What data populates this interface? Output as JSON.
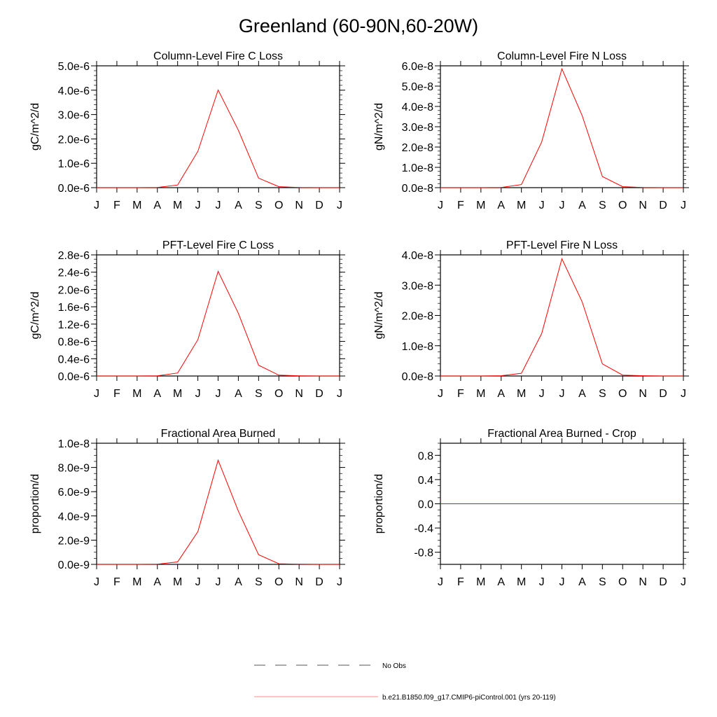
{
  "title": "Greenland (60-90N,60-20W)",
  "legend": {
    "entries": [
      {
        "label": "No Obs",
        "color": "#555555",
        "style": "dashed"
      },
      {
        "label": "b.e21.B1850.f09_g17.CMIP6-piControl.001 (yrs 20-119)",
        "color": "#ff0000",
        "style": "solid"
      }
    ]
  },
  "chart_data": [
    {
      "type": "line",
      "title": "Column-Level Fire C Loss",
      "ylabel": "gC/m^2/d",
      "categories": [
        "J",
        "F",
        "M",
        "A",
        "M",
        "J",
        "J",
        "A",
        "S",
        "O",
        "N",
        "D",
        "J"
      ],
      "ylim": [
        0,
        5e-06
      ],
      "yticks": [
        0,
        1e-06,
        2e-06,
        3e-06,
        4e-06,
        5e-06
      ],
      "yticklabels": [
        "0.0e-6",
        "1.0e-6",
        "2.0e-6",
        "3.0e-6",
        "4.0e-6",
        "5.0e-6"
      ],
      "minor_per_major": 5,
      "series": [
        {
          "color": "#ff0000",
          "values": [
            0,
            0,
            0,
            5e-09,
            1.1e-07,
            1.49e-06,
            4.01e-06,
            2.36e-06,
            3.9e-07,
            4e-08,
            1e-08,
            0,
            0
          ]
        }
      ]
    },
    {
      "type": "line",
      "title": "Column-Level Fire N Loss",
      "ylabel": "gN/m^2/d",
      "categories": [
        "J",
        "F",
        "M",
        "A",
        "M",
        "J",
        "J",
        "A",
        "S",
        "O",
        "N",
        "D",
        "J"
      ],
      "ylim": [
        0,
        6e-08
      ],
      "yticks": [
        0,
        1e-08,
        2e-08,
        3e-08,
        4e-08,
        5e-08,
        6e-08
      ],
      "yticklabels": [
        "0.0e-8",
        "1.0e-8",
        "2.0e-8",
        "3.0e-8",
        "4.0e-8",
        "5.0e-8",
        "6.0e-8"
      ],
      "minor_per_major": 5,
      "series": [
        {
          "color": "#ff0000",
          "values": [
            0,
            0,
            0,
            1e-10,
            1.5e-09,
            2.25e-08,
            5.85e-08,
            3.55e-08,
            5.5e-09,
            5e-10,
            1e-10,
            0,
            0
          ]
        }
      ]
    },
    {
      "type": "line",
      "title": "PFT-Level Fire C Loss",
      "ylabel": "gC/m^2/d",
      "categories": [
        "J",
        "F",
        "M",
        "A",
        "M",
        "J",
        "J",
        "A",
        "S",
        "O",
        "N",
        "D",
        "J"
      ],
      "ylim": [
        0,
        2.8e-06
      ],
      "yticks": [
        0,
        4e-07,
        8e-07,
        1.2e-06,
        1.6e-06,
        2e-06,
        2.4e-06,
        2.8e-06
      ],
      "yticklabels": [
        "0.0e-6",
        "0.4e-6",
        "0.8e-6",
        "1.2e-6",
        "1.6e-6",
        "2.0e-6",
        "2.4e-6",
        "2.8e-6"
      ],
      "minor_per_major": 4,
      "series": [
        {
          "color": "#ff0000",
          "values": [
            0,
            0,
            0,
            5e-09,
            7e-08,
            8.4e-07,
            2.42e-06,
            1.45e-06,
            2.5e-07,
            2e-08,
            5e-09,
            0,
            0
          ]
        }
      ]
    },
    {
      "type": "line",
      "title": "PFT-Level Fire N Loss",
      "ylabel": "gN/m^2/d",
      "categories": [
        "J",
        "F",
        "M",
        "A",
        "M",
        "J",
        "J",
        "A",
        "S",
        "O",
        "N",
        "D",
        "J"
      ],
      "ylim": [
        0,
        4e-08
      ],
      "yticks": [
        0,
        1e-08,
        2e-08,
        3e-08,
        4e-08
      ],
      "yticklabels": [
        "0.0e-8",
        "1.0e-8",
        "2.0e-8",
        "3.0e-8",
        "4.0e-8"
      ],
      "minor_per_major": 5,
      "series": [
        {
          "color": "#ff0000",
          "values": [
            0,
            0,
            0,
            1e-10,
            9e-10,
            1.4e-08,
            3.87e-08,
            2.45e-08,
            4e-09,
            3e-10,
            1e-10,
            0,
            0
          ]
        }
      ]
    },
    {
      "type": "line",
      "title": "Fractional Area Burned",
      "ylabel": "proportion/d",
      "categories": [
        "J",
        "F",
        "M",
        "A",
        "M",
        "J",
        "J",
        "A",
        "S",
        "O",
        "N",
        "D",
        "J"
      ],
      "ylim": [
        0,
        1e-08
      ],
      "yticks": [
        0,
        2e-09,
        4e-09,
        6e-09,
        8e-09,
        1e-08
      ],
      "yticklabels": [
        "0.0e-9",
        "2.0e-9",
        "4.0e-9",
        "6.0e-9",
        "8.0e-9",
        "1.0e-8"
      ],
      "minor_per_major": 4,
      "series": [
        {
          "color": "#ff0000",
          "values": [
            0,
            0,
            0,
            2e-11,
            2e-10,
            2.7e-09,
            8.6e-09,
            4.4e-09,
            8e-10,
            5e-11,
            1e-11,
            0,
            0
          ]
        }
      ]
    },
    {
      "type": "line",
      "title": "Fractional Area Burned - Crop",
      "ylabel": "proportion/d",
      "categories": [
        "J",
        "F",
        "M",
        "A",
        "M",
        "J",
        "J",
        "A",
        "S",
        "O",
        "N",
        "D",
        "J"
      ],
      "ylim": [
        -1,
        1
      ],
      "yticks": [
        -0.8,
        -0.4,
        0,
        0.4,
        0.8
      ],
      "yticklabels": [
        "-0.8",
        "-0.4",
        "0.0",
        "0.4",
        "0.8"
      ],
      "minor_per_major": 4,
      "series": [
        {
          "color": "#ff0000",
          "values": [
            0,
            0,
            0,
            0,
            0,
            0,
            0,
            0,
            0,
            0,
            0,
            0,
            0
          ]
        }
      ]
    }
  ]
}
